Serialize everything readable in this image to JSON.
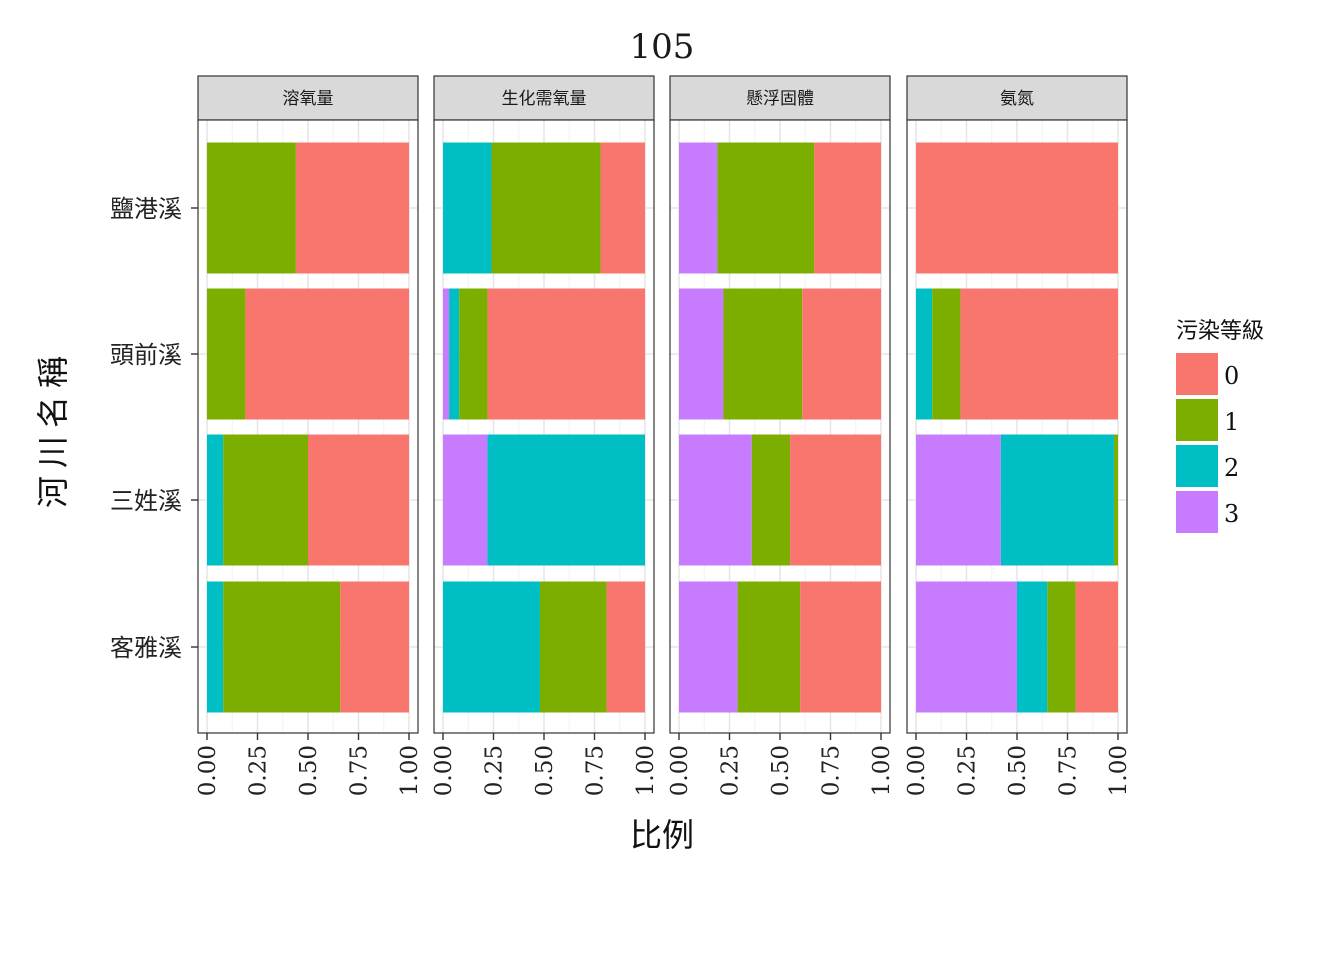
{
  "chart_data": {
    "type": "bar",
    "orientation": "horizontal",
    "stacked": true,
    "title": "105",
    "xlabel": "比例",
    "ylabel": "河川名稱",
    "xlim": [
      0,
      1
    ],
    "x_ticks": [
      "0.00",
      "0.25",
      "0.50",
      "0.75",
      "1.00"
    ],
    "categories": [
      "鹽港溪",
      "頭前溪",
      "三姓溪",
      "客雅溪"
    ],
    "legend": {
      "title": "污染等級",
      "placement": "right",
      "levels": [
        {
          "label": "0",
          "color": "#F8766D"
        },
        {
          "label": "1",
          "color": "#7CAE00"
        },
        {
          "label": "2",
          "color": "#00BFC4"
        },
        {
          "label": "3",
          "color": "#C77CFF"
        }
      ]
    },
    "stack_order": [
      "3",
      "2",
      "1",
      "0"
    ],
    "panels": [
      {
        "name": "溶氧量",
        "bars": [
          {
            "category": "鹽港溪",
            "values": {
              "3": 0,
              "2": 0,
              "1": 0.44,
              "0": 0.56
            }
          },
          {
            "category": "頭前溪",
            "values": {
              "3": 0,
              "2": 0,
              "1": 0.19,
              "0": 0.81
            }
          },
          {
            "category": "三姓溪",
            "values": {
              "3": 0,
              "2": 0.08,
              "1": 0.42,
              "0": 0.5
            }
          },
          {
            "category": "客雅溪",
            "values": {
              "3": 0,
              "2": 0.08,
              "1": 0.58,
              "0": 0.34
            }
          }
        ]
      },
      {
        "name": "生化需氧量",
        "bars": [
          {
            "category": "鹽港溪",
            "values": {
              "3": 0,
              "2": 0.24,
              "1": 0.54,
              "0": 0.22
            }
          },
          {
            "category": "頭前溪",
            "values": {
              "3": 0.03,
              "2": 0.05,
              "1": 0.14,
              "0": 0.78
            }
          },
          {
            "category": "三姓溪",
            "values": {
              "3": 0.22,
              "2": 0.78,
              "1": 0,
              "0": 0
            }
          },
          {
            "category": "客雅溪",
            "values": {
              "3": 0,
              "2": 0.48,
              "1": 0.33,
              "0": 0.19
            }
          }
        ]
      },
      {
        "name": "懸浮固體",
        "bars": [
          {
            "category": "鹽港溪",
            "values": {
              "3": 0.19,
              "2": 0,
              "1": 0.48,
              "0": 0.33
            }
          },
          {
            "category": "頭前溪",
            "values": {
              "3": 0.22,
              "2": 0,
              "1": 0.39,
              "0": 0.39
            }
          },
          {
            "category": "三姓溪",
            "values": {
              "3": 0.36,
              "2": 0,
              "1": 0.19,
              "0": 0.45
            }
          },
          {
            "category": "客雅溪",
            "values": {
              "3": 0.29,
              "2": 0,
              "1": 0.31,
              "0": 0.4
            }
          }
        ]
      },
      {
        "name": "氨氮",
        "bars": [
          {
            "category": "鹽港溪",
            "values": {
              "3": 0,
              "2": 0,
              "1": 0,
              "0": 1.0
            }
          },
          {
            "category": "頭前溪",
            "values": {
              "3": 0,
              "2": 0.08,
              "1": 0.14,
              "0": 0.78
            }
          },
          {
            "category": "三姓溪",
            "values": {
              "3": 0.42,
              "2": 0.56,
              "1": 0.02,
              "0": 0
            }
          },
          {
            "category": "客雅溪",
            "values": {
              "3": 0.5,
              "2": 0.15,
              "1": 0.14,
              "0": 0.21
            }
          }
        ]
      }
    ]
  }
}
